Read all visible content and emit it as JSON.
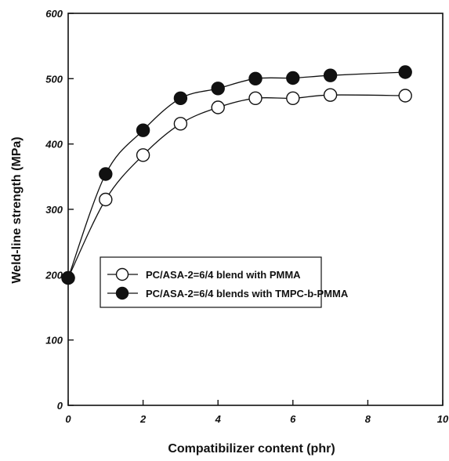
{
  "chart_data": {
    "type": "line",
    "title": "",
    "xlabel": "Compatibilizer content (phr)",
    "ylabel": "Weld-line strength (MPa)",
    "xlim": [
      0,
      10
    ],
    "ylim": [
      0,
      600
    ],
    "xticks": [
      0,
      2,
      4,
      6,
      8,
      10
    ],
    "yticks": [
      0,
      100,
      200,
      300,
      400,
      500,
      600
    ],
    "grid": false,
    "legend_position": "center-right",
    "series": [
      {
        "name": "PC/ASA-2=6/4 blend with PMMA",
        "marker": "open-circle",
        "color": "#111111",
        "x": [
          0,
          1,
          2,
          3,
          4,
          5,
          6,
          7,
          9
        ],
        "y": [
          195,
          315,
          383,
          431,
          456,
          470,
          470,
          475,
          474
        ]
      },
      {
        "name": "PC/ASA-2=6/4 blends with TMPC-b-PMMA",
        "marker": "filled-circle",
        "color": "#111111",
        "x": [
          0,
          1,
          2,
          3,
          4,
          5,
          6,
          7,
          9
        ],
        "y": [
          195,
          354,
          421,
          470,
          485,
          500,
          501,
          505,
          510
        ]
      }
    ]
  }
}
